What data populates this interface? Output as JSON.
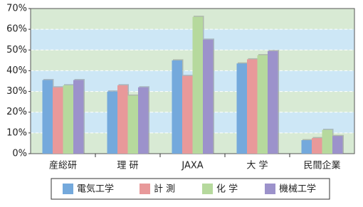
{
  "chart_data": {
    "type": "bar",
    "categories": [
      "産総研",
      "理 研",
      "JAXA",
      "大 学",
      "民間企業"
    ],
    "series": [
      {
        "name": "電気工学",
        "color": "#74a9dc",
        "values": [
          35.5,
          30,
          45,
          43.5,
          6.5
        ]
      },
      {
        "name": "計 測",
        "color": "#e8999a",
        "values": [
          32,
          33,
          37.5,
          45.5,
          7.5
        ]
      },
      {
        "name": "化 学",
        "color": "#b6d99d",
        "values": [
          33,
          28,
          66,
          47.5,
          11.5
        ]
      },
      {
        "name": "機械工学",
        "color": "#9c92cb",
        "values": [
          35.5,
          32,
          55,
          49.5,
          8.5
        ]
      }
    ],
    "ylim": [
      0,
      70
    ],
    "yticks": [
      {
        "value": 0,
        "label": "0%"
      },
      {
        "value": 10,
        "label": "10%"
      },
      {
        "value": 20,
        "label": "20%"
      },
      {
        "value": 30,
        "label": "30%"
      },
      {
        "value": 40,
        "label": "40%"
      },
      {
        "value": 50,
        "label": "50%"
      },
      {
        "value": 60,
        "label": "60%"
      },
      {
        "value": 70,
        "label": "70%"
      }
    ],
    "grid": true
  }
}
